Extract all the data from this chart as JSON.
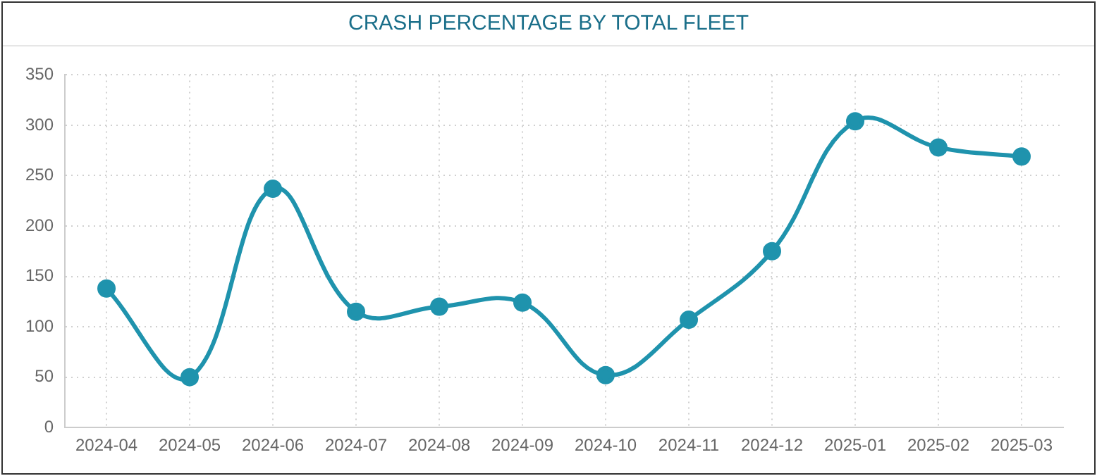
{
  "chart_data": {
    "type": "line",
    "title": "CRASH PERCENTAGE BY TOTAL FLEET",
    "categories": [
      "2024-04",
      "2024-05",
      "2024-06",
      "2024-07",
      "2024-08",
      "2024-09",
      "2024-10",
      "2024-11",
      "2024-12",
      "2025-01",
      "2025-02",
      "2025-03"
    ],
    "series": [
      {
        "color": "#1f93ad",
        "values": [
          138,
          50,
          237,
          115,
          120,
          124,
          52,
          107,
          175,
          304,
          278,
          269
        ]
      }
    ],
    "ylim": [
      0,
      350
    ],
    "yticks": [
      0,
      50,
      100,
      150,
      200,
      250,
      300,
      350
    ],
    "grid": true,
    "legend": false,
    "marker": "circle",
    "line_style": "solid"
  }
}
